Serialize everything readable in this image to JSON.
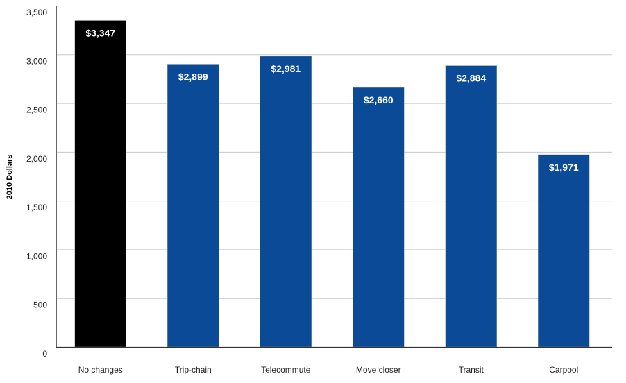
{
  "chart_data": {
    "type": "bar",
    "title": "",
    "xlabel": "",
    "ylabel": "2010 Dollars",
    "ylim": [
      0,
      3500
    ],
    "yticks": [
      0,
      500,
      1000,
      1500,
      2000,
      2500,
      3000,
      3500
    ],
    "ytick_labels": [
      "0",
      "500",
      "1,000",
      "1,500",
      "2,000",
      "2,500",
      "3,000",
      "3,500"
    ],
    "grid": true,
    "categories": [
      "No changes",
      "Trip-chain",
      "Telecommute",
      "Move closer",
      "Transit",
      "Carpool"
    ],
    "values": [
      3347,
      2899,
      2981,
      2660,
      2884,
      1971
    ],
    "data_labels": [
      "$3,347",
      "$2,899",
      "$2,981",
      "$2,660",
      "$2,884",
      "$1,971"
    ],
    "colors": [
      "#000000",
      "#0a4a97",
      "#0a4a97",
      "#0a4a97",
      "#0a4a97",
      "#0a4a97"
    ]
  }
}
